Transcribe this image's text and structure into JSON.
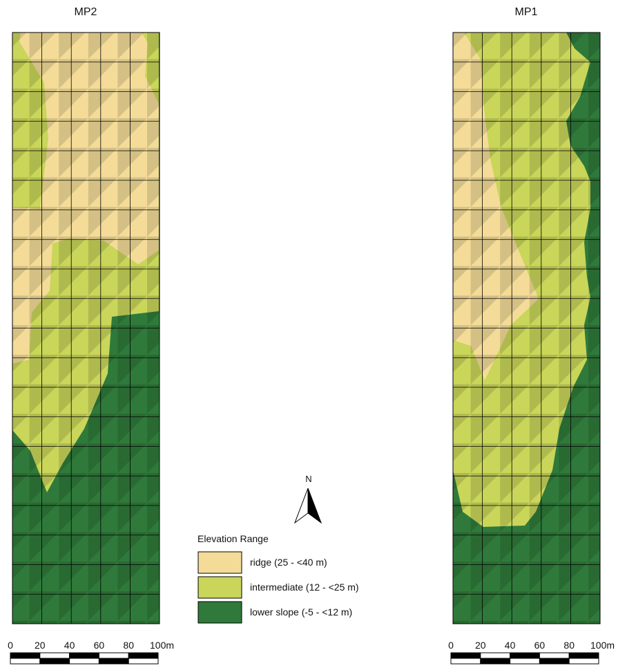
{
  "panels": [
    {
      "title": "MP2",
      "scale_labels": [
        "0",
        "20",
        "40",
        "60",
        "80",
        "100m"
      ]
    },
    {
      "title": "MP1",
      "scale_labels": [
        "0",
        "20",
        "40",
        "60",
        "80",
        "100m"
      ]
    }
  ],
  "north_label": "N",
  "legend": {
    "title": "Elevation Range",
    "items": [
      {
        "label": "ridge (25 - <40 m)",
        "color": "#f4dc98"
      },
      {
        "label": "intermediate (12 - <25 m)",
        "color": "#c9d65a"
      },
      {
        "label": "lower slope (-5 - <12 m)",
        "color": "#2f7a3a"
      }
    ]
  }
}
